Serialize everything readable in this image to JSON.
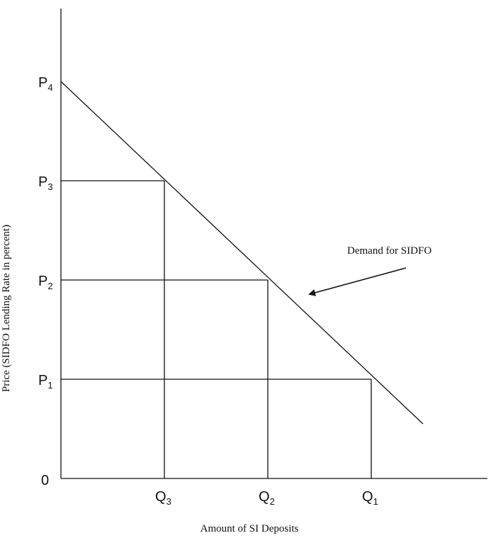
{
  "chart_data": {
    "type": "line",
    "xlabel": "Amount of SI Deposits",
    "ylabel": "Price (SIDFO Lending Rate in percent)",
    "origin_label": "0",
    "y_ticks": [
      {
        "base": "P",
        "sub": "1",
        "value": 1
      },
      {
        "base": "P",
        "sub": "2",
        "value": 2
      },
      {
        "base": "P",
        "sub": "3",
        "value": 3
      },
      {
        "base": "P",
        "sub": "4",
        "value": 4
      }
    ],
    "x_ticks": [
      {
        "base": "Q",
        "sub": "3",
        "value": 1
      },
      {
        "base": "Q",
        "sub": "2",
        "value": 2
      },
      {
        "base": "Q",
        "sub": "1",
        "value": 3
      }
    ],
    "demand_curve": {
      "name": "Demand for SIDFO",
      "points": [
        [
          0,
          4
        ],
        [
          3.5,
          0.55
        ]
      ]
    },
    "guides": [
      {
        "x": 1,
        "y": 3
      },
      {
        "x": 2,
        "y": 2
      },
      {
        "x": 3,
        "y": 1
      }
    ],
    "annotation": {
      "text": "Demand for SIDFO"
    },
    "xlim": [
      0,
      4.1
    ],
    "ylim": [
      0,
      4.7
    ],
    "grid": false
  }
}
